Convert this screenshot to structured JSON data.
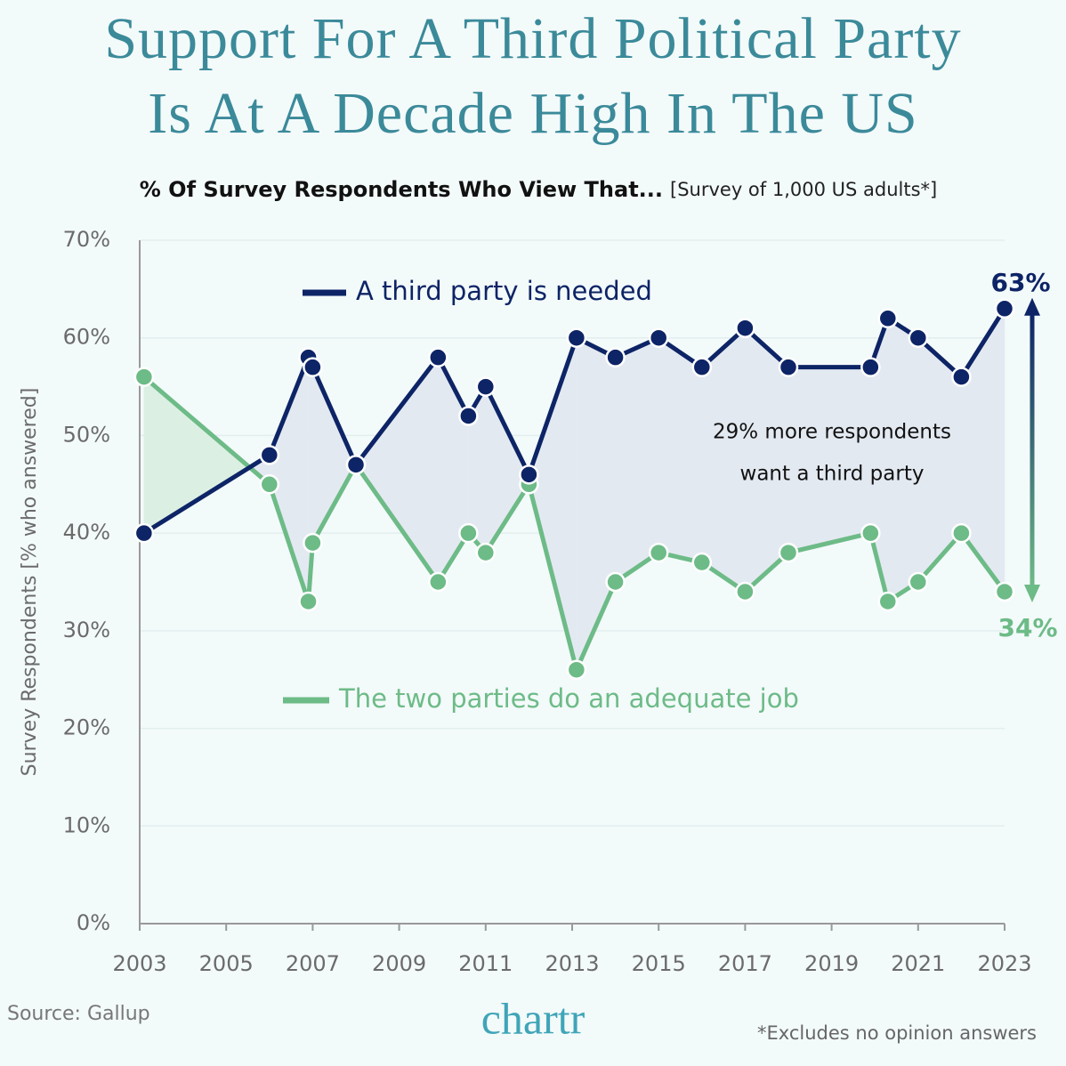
{
  "chart_data": {
    "type": "line",
    "title": [
      "Support For A Third Political Party",
      "Is At A Decade High In The US"
    ],
    "subtitle": "% Of Survey Respondents Who View That...",
    "subtitle_note": "[Survey of 1,000 US adults*]",
    "y_label": "Survey Respondents [% who answered]",
    "x": [
      2003.1,
      2006.0,
      2006.9,
      2007.0,
      2008.0,
      2009.9,
      2010.6,
      2011.0,
      2012.0,
      2013.1,
      2014.0,
      2015.0,
      2016.0,
      2017.0,
      2018.0,
      2019.9,
      2020.3,
      2021.0,
      2022.0,
      2023.0
    ],
    "series": [
      {
        "name": "A third party is needed",
        "color": "#0d2466",
        "end_label": "63%",
        "values": [
          40,
          48,
          58,
          57,
          47,
          58,
          52,
          55,
          46,
          60,
          58,
          60,
          57,
          61,
          57,
          57,
          62,
          60,
          56,
          63
        ]
      },
      {
        "name": "The two parties do an adequate job",
        "color": "#6dbb87",
        "end_label": "34%",
        "values": [
          56,
          45,
          33,
          39,
          47,
          35,
          40,
          38,
          45,
          26,
          35,
          38,
          37,
          34,
          38,
          40,
          33,
          35,
          40,
          34
        ]
      }
    ],
    "xlim": [
      2003,
      2023
    ],
    "xticks": [
      2003,
      2005,
      2007,
      2009,
      2011,
      2013,
      2015,
      2017,
      2019,
      2021,
      2023
    ],
    "ylim": [
      0,
      70
    ],
    "yticks": [
      {
        "value": 0,
        "label": "0%"
      },
      {
        "value": 10,
        "label": "10%"
      },
      {
        "value": 20,
        "label": "20%"
      },
      {
        "value": 30,
        "label": "30%"
      },
      {
        "value": 40,
        "label": "40%"
      },
      {
        "value": 50,
        "label": "50%"
      },
      {
        "value": 60,
        "label": "60%"
      },
      {
        "value": 70,
        "label": "70%"
      }
    ],
    "grid": true,
    "annotation": [
      "29% more respondents",
      "want a third party"
    ],
    "source": "Source: Gallup",
    "brand": "chartr",
    "footnote": "*Excludes no opinion answers"
  }
}
